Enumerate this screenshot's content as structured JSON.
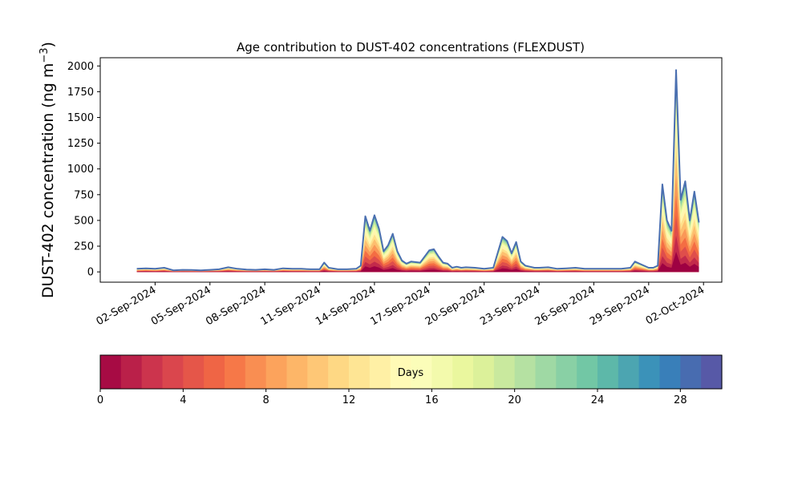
{
  "chart_data": [
    {
      "type": "area",
      "title": "Age contribution to DUST-402 concentrations (FLEXDUST)",
      "ylabel": "DUST-402 concentration (ng m",
      "ylabel_superscript": "−3",
      "ylabel_close": ")",
      "xlabel": "",
      "ylim": [
        -100,
        2080
      ],
      "xlim": [
        "2024-08-30",
        "2024-10-03"
      ],
      "yticks": [
        0,
        250,
        500,
        750,
        1000,
        1250,
        1500,
        1750,
        2000
      ],
      "xticks": [
        "02-Sep-2024",
        "05-Sep-2024",
        "08-Sep-2024",
        "11-Sep-2024",
        "14-Sep-2024",
        "17-Sep-2024",
        "20-Sep-2024",
        "23-Sep-2024",
        "26-Sep-2024",
        "29-Sep-2024",
        "02-Oct-2024"
      ],
      "grid": false,
      "stack_colormap": "Spectral",
      "total_line_color": "#4a6fb0",
      "x": [
        "2024-09-01",
        "2024-09-01 12:00",
        "2024-09-02",
        "2024-09-02 12:00",
        "2024-09-03",
        "2024-09-03 12:00",
        "2024-09-04",
        "2024-09-04 12:00",
        "2024-09-05",
        "2024-09-05 12:00",
        "2024-09-06",
        "2024-09-06 12:00",
        "2024-09-07",
        "2024-09-07 12:00",
        "2024-09-08",
        "2024-09-08 12:00",
        "2024-09-09",
        "2024-09-09 12:00",
        "2024-09-10",
        "2024-09-10 12:00",
        "2024-09-11",
        "2024-09-11 06:00",
        "2024-09-11 12:00",
        "2024-09-12",
        "2024-09-12 12:00",
        "2024-09-13",
        "2024-09-13 06:00",
        "2024-09-13 12:00",
        "2024-09-13 18:00",
        "2024-09-14",
        "2024-09-14 06:00",
        "2024-09-14 12:00",
        "2024-09-14 18:00",
        "2024-09-15",
        "2024-09-15 06:00",
        "2024-09-15 12:00",
        "2024-09-15 18:00",
        "2024-09-16",
        "2024-09-16 12:00",
        "2024-09-17",
        "2024-09-17 06:00",
        "2024-09-17 12:00",
        "2024-09-17 18:00",
        "2024-09-18",
        "2024-09-18 06:00",
        "2024-09-18 12:00",
        "2024-09-18 18:00",
        "2024-09-19",
        "2024-09-19 12:00",
        "2024-09-20",
        "2024-09-20 12:00",
        "2024-09-21",
        "2024-09-21 06:00",
        "2024-09-21 12:00",
        "2024-09-21 18:00",
        "2024-09-22",
        "2024-09-22 06:00",
        "2024-09-22 12:00",
        "2024-09-22 18:00",
        "2024-09-23",
        "2024-09-23 12:00",
        "2024-09-24",
        "2024-09-24 12:00",
        "2024-09-25",
        "2024-09-25 12:00",
        "2024-09-26",
        "2024-09-26 12:00",
        "2024-09-27",
        "2024-09-27 12:00",
        "2024-09-28",
        "2024-09-28 06:00",
        "2024-09-28 12:00",
        "2024-09-29",
        "2024-09-29 06:00",
        "2024-09-29 12:00",
        "2024-09-29 18:00",
        "2024-09-30",
        "2024-09-30 06:00",
        "2024-09-30 12:00",
        "2024-09-30 18:00",
        "2024-10-01",
        "2024-10-01 06:00",
        "2024-10-01 12:00",
        "2024-10-01 18:00"
      ],
      "series": [
        {
          "values": [
            30,
            35,
            30,
            40,
            15,
            20,
            18,
            15,
            20,
            25,
            45,
            30,
            22,
            20,
            25,
            20,
            35,
            30,
            30,
            25,
            25,
            90,
            40,
            25,
            25,
            30,
            60,
            540,
            400,
            550,
            420,
            200,
            260,
            370,
            200,
            110,
            80,
            100,
            90,
            210,
            220,
            150,
            90,
            80,
            40,
            50,
            40,
            45,
            40,
            30,
            40,
            340,
            300,
            180,
            290,
            100,
            60,
            50,
            40,
            40,
            45,
            30,
            35,
            40,
            30,
            30,
            30,
            30,
            30,
            40,
            100,
            80,
            40,
            40,
            60,
            850,
            500,
            400,
            1960,
            700,
            880,
            500,
            780,
            480
          ]
        }
      ]
    },
    {
      "type": "colorbar",
      "label": "Days",
      "range": [
        0,
        30
      ],
      "bands": 30,
      "ticks": [
        0,
        4,
        8,
        12,
        16,
        20,
        24,
        28
      ],
      "colormap": "Spectral"
    }
  ]
}
